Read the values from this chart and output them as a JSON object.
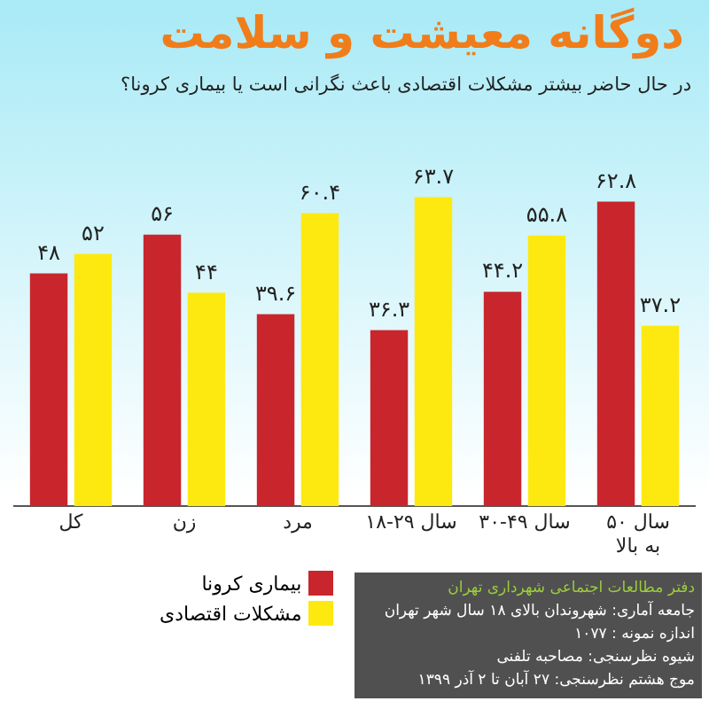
{
  "chart_data": {
    "type": "bar",
    "title": "دوگانه معیشت و سلامت",
    "subtitle": "در حال حاضر بیشتر مشکلات اقتصادی باعث نگرانی است یا بیماری کرونا؟",
    "categories": [
      "کل",
      "زن",
      "مرد",
      "۱۸-۲۹ سال",
      "۳۰-۴۹ سال",
      "۵۰ سال به بالا"
    ],
    "series": [
      {
        "name": "بیماری کرونا",
        "color": "#c8262c",
        "values": [
          48,
          56,
          39.6,
          36.3,
          44.2,
          62.8
        ],
        "value_labels": [
          "۴۸",
          "۵۶",
          "۳۹.۶",
          "۳۶.۳",
          "۴۴.۲",
          "۶۲.۸"
        ]
      },
      {
        "name": "مشکلات اقتصادی",
        "color": "#fde910",
        "values": [
          52,
          44,
          60.4,
          63.7,
          55.8,
          37.2
        ],
        "value_labels": [
          "۵۲",
          "۴۴",
          "۶۰.۴",
          "۶۳.۷",
          "۵۵.۸",
          "۳۷.۲"
        ]
      }
    ],
    "legend": "bottom left",
    "grid": false,
    "annotations": [
      "دفتر مطالعات اجتماعی شهرداری تهران",
      "جامعه آماری: شهروندان بالای ۱۸ سال شهر تهران",
      "اندازه نمونه : ۱۰۷۷",
      "شیوه نظرسنجی: مصاحبه تلفنی",
      "موج هشتم نظرسنجی: ۲۷ آبان تا ۲ آذر ۱۳۹۹"
    ]
  }
}
